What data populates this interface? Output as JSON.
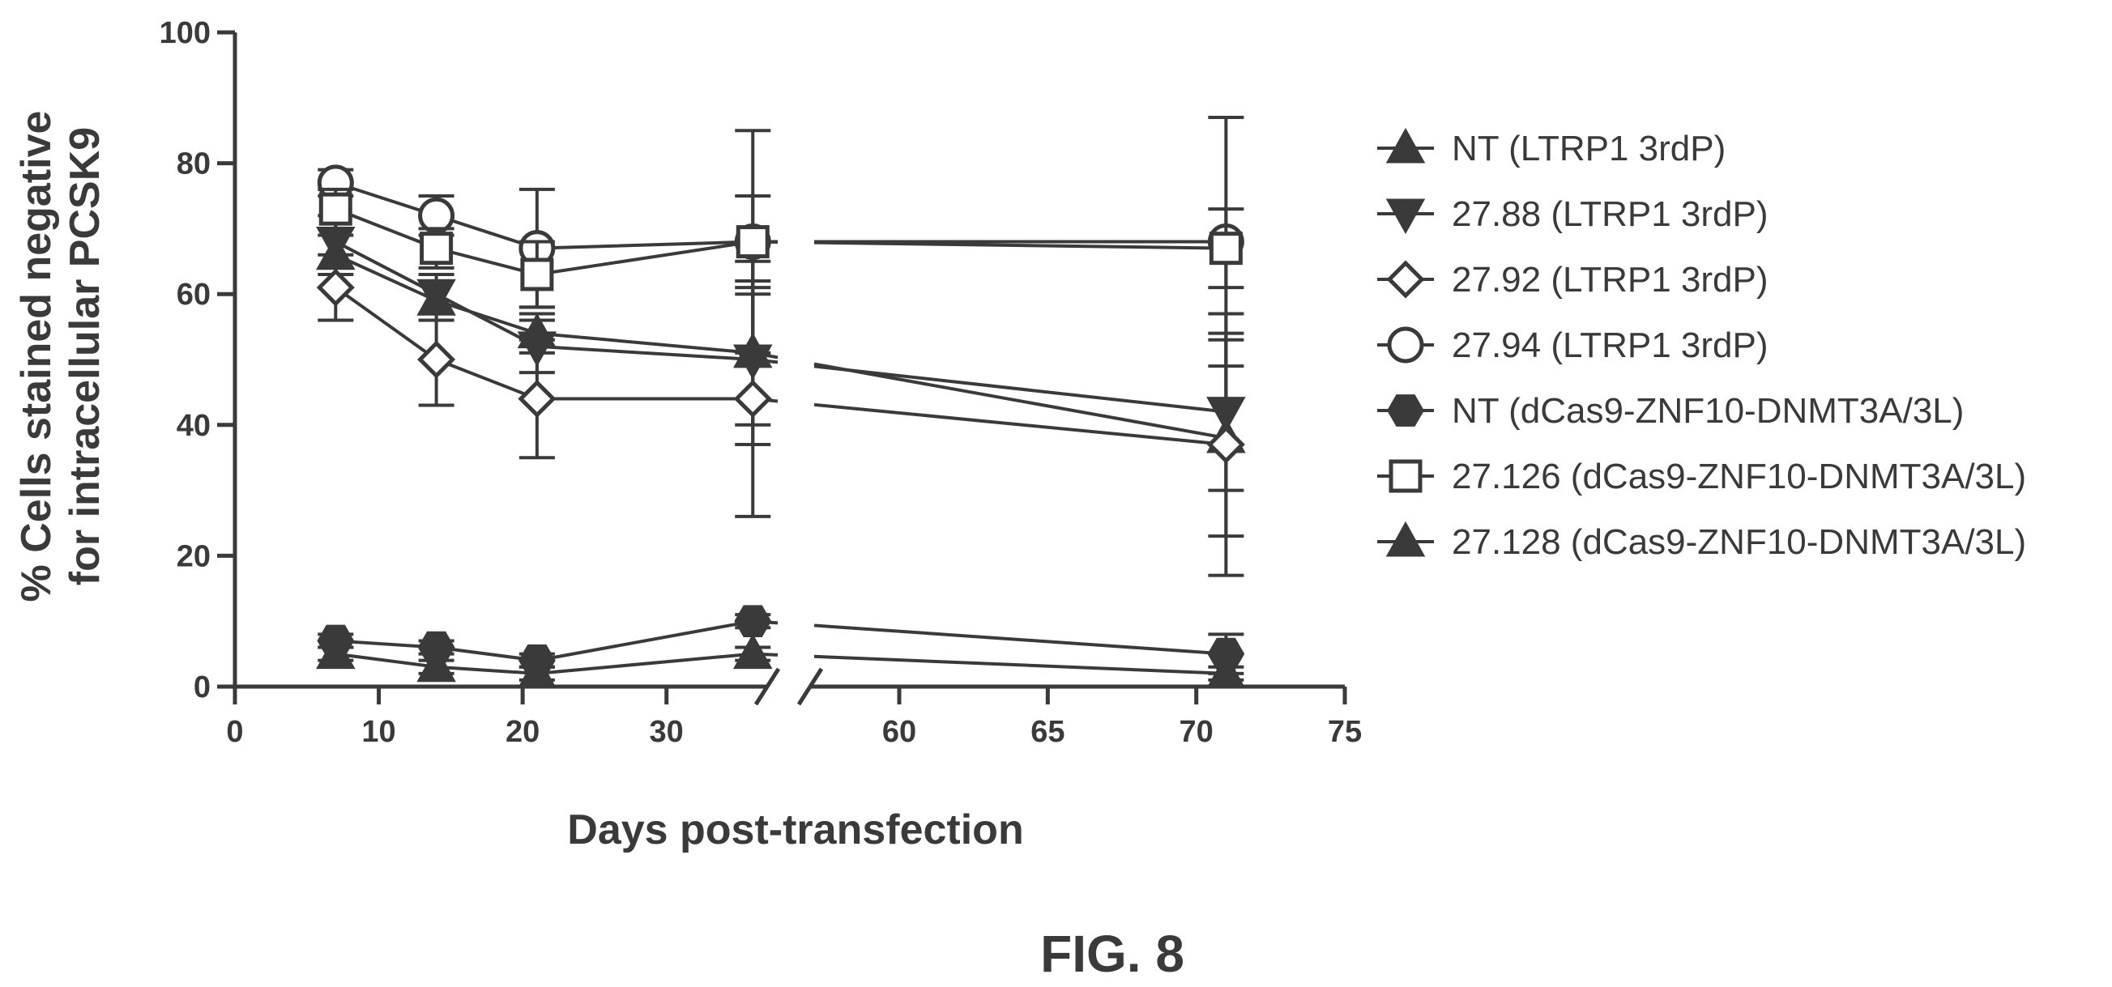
{
  "figure_label": "FIG. 8",
  "chart_data": {
    "type": "line",
    "title": "",
    "xlabel": "Days post-transfection",
    "ylabel_lines": [
      "% Cells stained negative",
      "for intracellular  PCSK9"
    ],
    "ylim": [
      0,
      100
    ],
    "yticks": [
      0,
      20,
      40,
      60,
      80,
      100
    ],
    "x_axis_segments": [
      {
        "range": [
          0,
          37
        ],
        "ticks": [
          0,
          10,
          20,
          30
        ]
      },
      {
        "range": [
          57,
          75
        ],
        "ticks": [
          60,
          65,
          70,
          75
        ]
      }
    ],
    "axis_break": "between 37 and 57",
    "grid": false,
    "legend_position": "right",
    "series": [
      {
        "name": "NT (LTRP1 3rdP)",
        "marker": "triangle-up",
        "fill": "filled",
        "x": [
          7,
          14,
          21,
          36,
          71
        ],
        "y": [
          66,
          59,
          54,
          51,
          38
        ],
        "err": [
          3,
          3,
          3,
          14,
          15
        ]
      },
      {
        "name": "27.88 (LTRP1 3rdP)",
        "marker": "triangle-down",
        "fill": "filled",
        "x": [
          7,
          14,
          21,
          36,
          71
        ],
        "y": [
          68,
          60,
          52,
          50,
          42
        ],
        "err": [
          4,
          3,
          4,
          10,
          12
        ]
      },
      {
        "name": "27.92 (LTRP1 3rdP)",
        "marker": "diamond",
        "fill": "open",
        "x": [
          7,
          14,
          21,
          36,
          71
        ],
        "y": [
          61,
          50,
          44,
          44,
          37
        ],
        "err": [
          5,
          7,
          9,
          18,
          20
        ]
      },
      {
        "name": "27.94 (LTRP1 3rdP)",
        "marker": "circle",
        "fill": "open",
        "x": [
          7,
          14,
          21,
          36,
          71
        ],
        "y": [
          77,
          72,
          67,
          68,
          68
        ],
        "err": [
          2,
          3,
          9,
          17,
          19
        ]
      },
      {
        "name": "NT (dCas9-ZNF10-DNMT3A/3L)",
        "marker": "hexagon",
        "fill": "filled",
        "x": [
          7,
          14,
          21,
          36,
          71
        ],
        "y": [
          7,
          6,
          4,
          10,
          5
        ],
        "err": [
          1,
          1,
          1,
          1,
          3
        ]
      },
      {
        "name": "27.126 (dCas9-ZNF10-DNMT3A/3L)",
        "marker": "square",
        "fill": "open",
        "x": [
          7,
          14,
          21,
          36,
          71
        ],
        "y": [
          73,
          67,
          63,
          68,
          67
        ],
        "err": [
          3,
          3,
          5,
          7,
          6
        ]
      },
      {
        "name": "27.128 (dCas9-ZNF10-DNMT3A/3L)",
        "marker": "triangle-up",
        "fill": "filled",
        "x": [
          7,
          14,
          21,
          36,
          71
        ],
        "y": [
          5,
          3,
          2,
          5,
          2
        ],
        "err": [
          1,
          1,
          1,
          1,
          1
        ]
      }
    ]
  },
  "colors": {
    "ink": "#3a3a3a"
  }
}
